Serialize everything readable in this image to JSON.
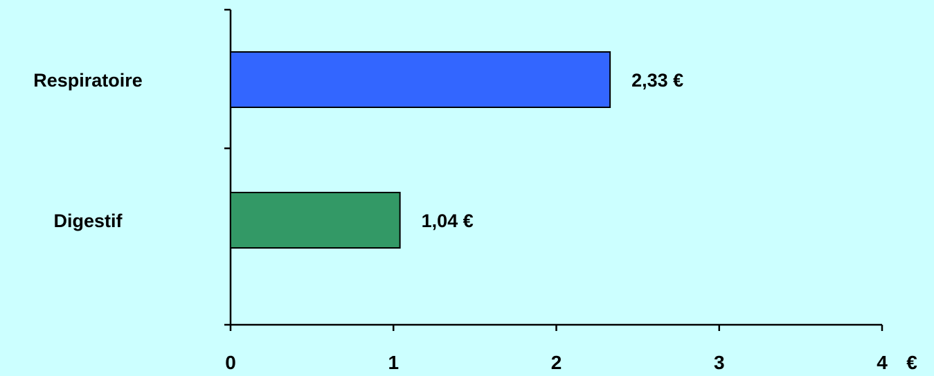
{
  "chart_data": {
    "type": "bar",
    "orientation": "horizontal",
    "categories": [
      "Respiratoire",
      "Digestif"
    ],
    "values": [
      2.33,
      1.04
    ],
    "data_labels": [
      "2,33 €",
      "1,04 €"
    ],
    "bar_colors": [
      "#3366ff",
      "#339966"
    ],
    "xlim": [
      0,
      4
    ],
    "x_ticks": [
      0,
      1,
      2,
      3,
      4
    ],
    "x_tick_labels": [
      "0",
      "1",
      "2",
      "3",
      "4"
    ],
    "x_unit": "€",
    "grid": false,
    "legend": "none",
    "background_color": "#ccffff"
  }
}
